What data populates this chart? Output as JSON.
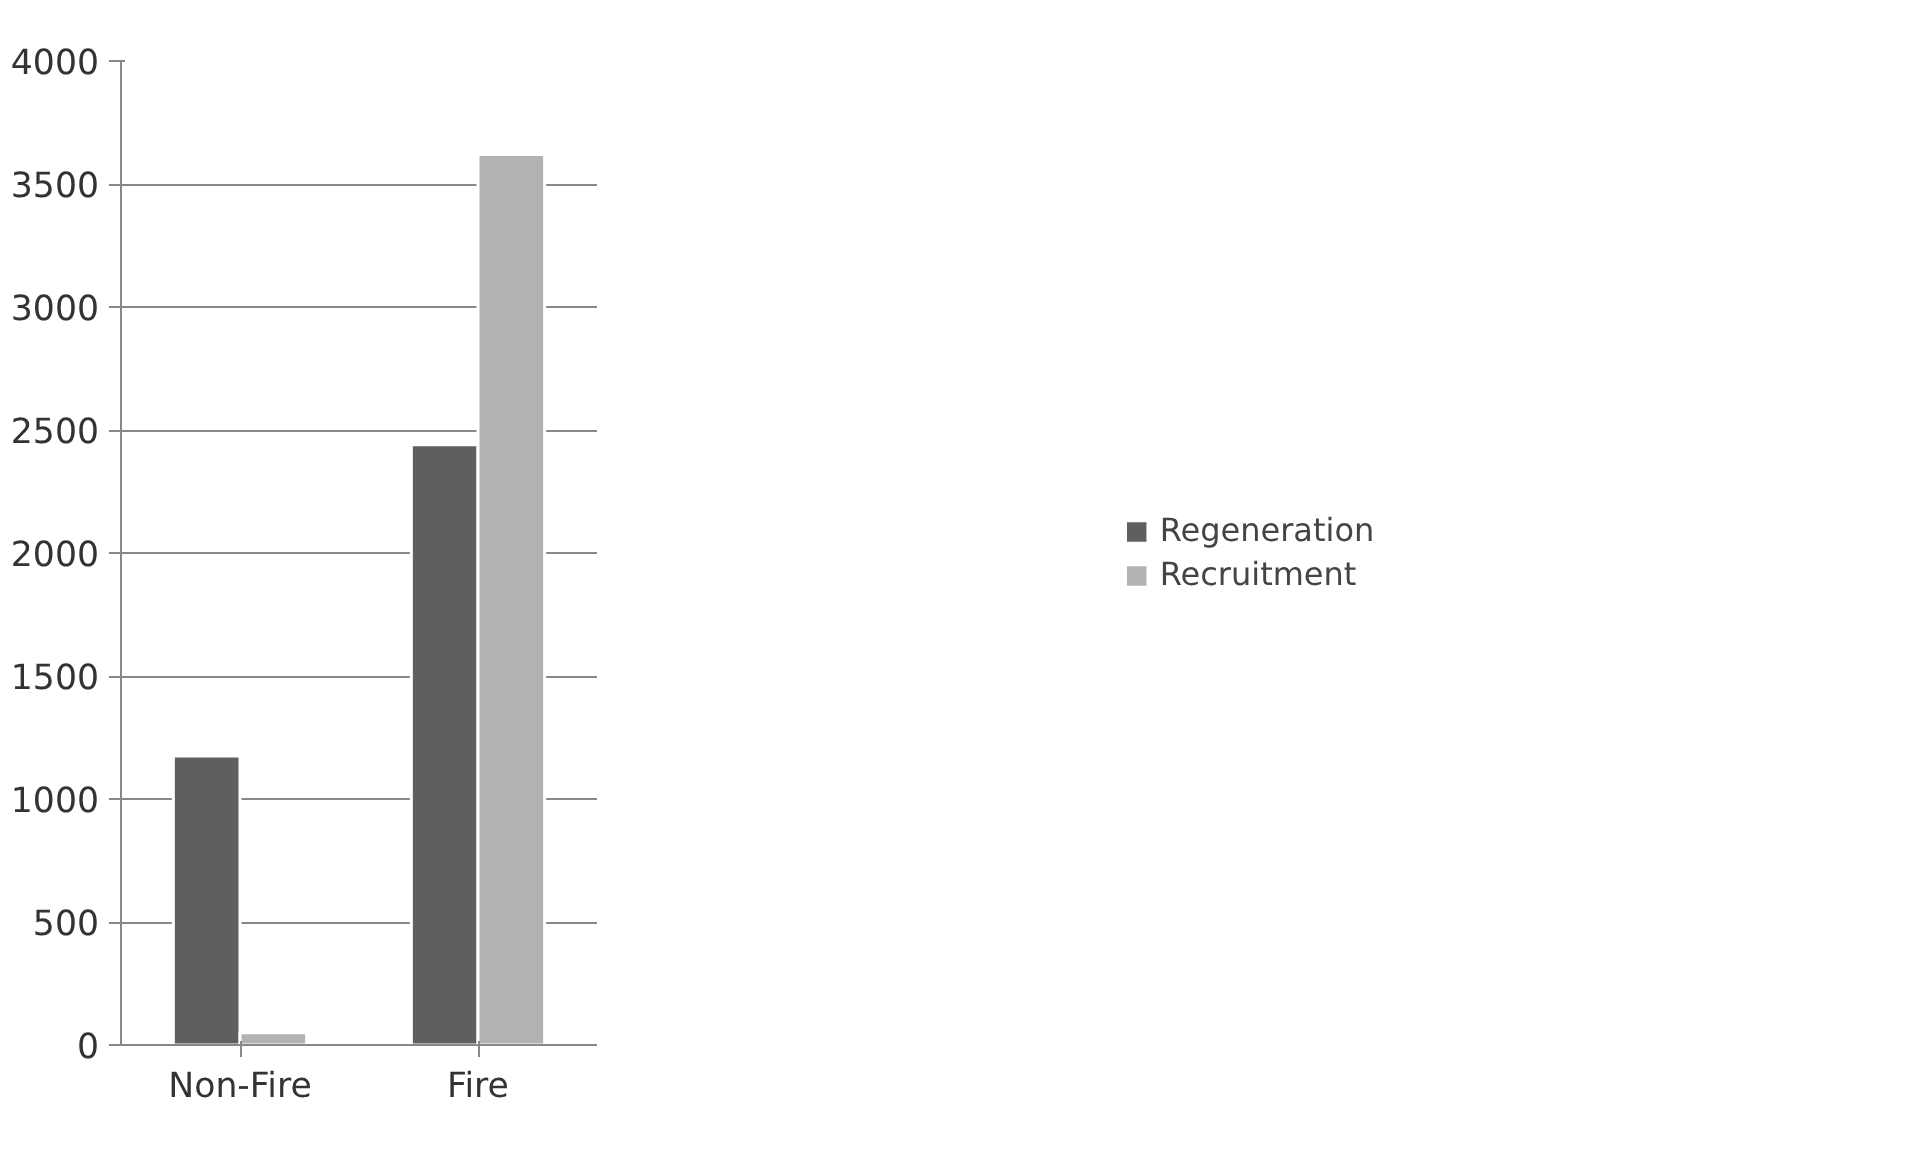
{
  "chart_data": {
    "type": "bar",
    "categories": [
      "Non-Fire",
      "Fire"
    ],
    "series": [
      {
        "name": "Regeneration",
        "color": "#5f5f5f",
        "values": [
          1175,
          2440
        ]
      },
      {
        "name": "Recruitment",
        "color": "#b2b2b2",
        "values": [
          50,
          3620
        ]
      }
    ],
    "ylim": [
      0,
      4000
    ],
    "yticks": [
      0,
      500,
      1000,
      1500,
      2000,
      2500,
      3000,
      3500,
      4000
    ],
    "grid": "y",
    "legend": "right"
  }
}
